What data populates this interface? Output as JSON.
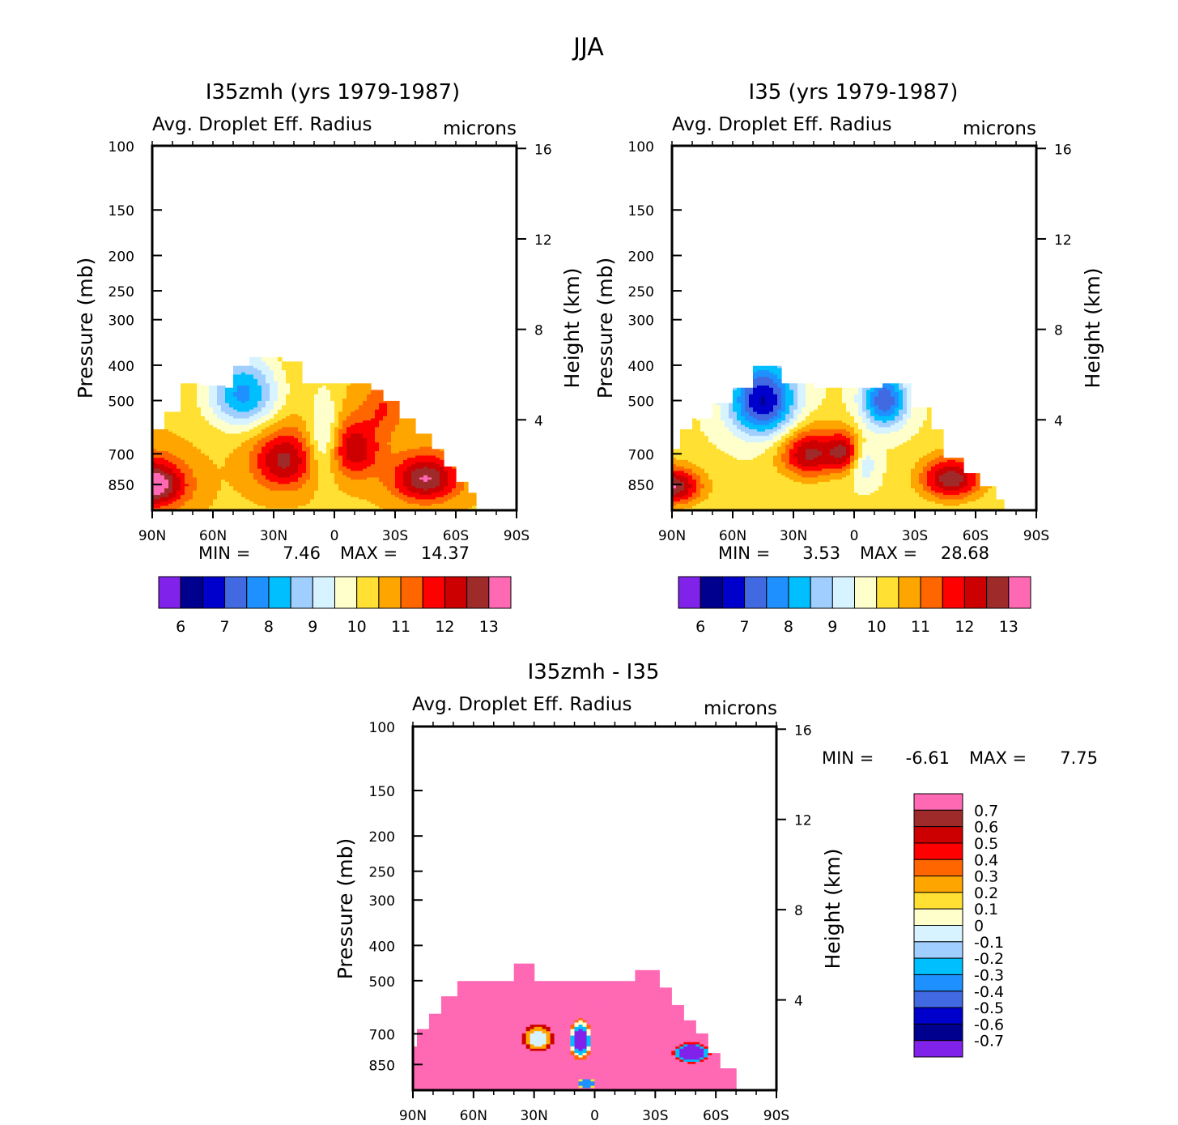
{
  "figure_title": "JJA",
  "palettes": {
    "abs": [
      "#8122EA",
      "#00008E",
      "#0000CC",
      "#4169E1",
      "#1E90FF",
      "#00BFFF",
      "#A0CFFF",
      "#D6F3FF",
      "#FFFFCC",
      "#FFE033",
      "#FFA500",
      "#FF6600",
      "#FF0000",
      "#CC0000",
      "#9E2A2A",
      "#FF69B4"
    ],
    "diff": [
      "#8122EA",
      "#00008E",
      "#0000CC",
      "#4169E1",
      "#1E90FF",
      "#00BFFF",
      "#A0CFFF",
      "#D6F3FF",
      "#FFFFCC",
      "#FFE033",
      "#FFA500",
      "#FF6600",
      "#FF0000",
      "#CC0000",
      "#9E2A2A",
      "#FF69B4"
    ]
  },
  "chart_data": [
    {
      "type": "heatmap",
      "title": "I35zmh (yrs 1979-1987)",
      "variable": "Avg. Droplet Eff. Radius",
      "units": "microns",
      "ylabel": "Pressure (mb)",
      "y2label": "Height (km)",
      "x_ticks": [
        "90N",
        "60N",
        "30N",
        "0",
        "30S",
        "60S",
        "90S"
      ],
      "y_ticks": [
        "100",
        "150",
        "200",
        "250",
        "300",
        "400",
        "500",
        "700",
        "850"
      ],
      "y2_ticks": [
        "16",
        "12",
        "8",
        "4"
      ],
      "min_label": "MIN =",
      "min_value": "7.46",
      "max_label": "MAX =",
      "max_value": "14.37",
      "colorbar_labels": [
        "6",
        "7",
        "8",
        "9",
        "10",
        "11",
        "12",
        "13"
      ]
    },
    {
      "type": "heatmap",
      "title": "I35 (yrs 1979-1987)",
      "variable": "Avg. Droplet Eff. Radius",
      "units": "microns",
      "ylabel": "Pressure (mb)",
      "y2label": "Height (km)",
      "x_ticks": [
        "90N",
        "60N",
        "30N",
        "0",
        "30S",
        "60S",
        "90S"
      ],
      "y_ticks": [
        "100",
        "150",
        "200",
        "250",
        "300",
        "400",
        "500",
        "700",
        "850"
      ],
      "y2_ticks": [
        "16",
        "12",
        "8",
        "4"
      ],
      "min_label": "MIN =",
      "min_value": "3.53",
      "max_label": "MAX =",
      "max_value": "28.68",
      "colorbar_labels": [
        "6",
        "7",
        "8",
        "9",
        "10",
        "11",
        "12",
        "13"
      ]
    },
    {
      "type": "heatmap",
      "title": "I35zmh - I35",
      "variable": "Avg. Droplet Eff. Radius",
      "units": "microns",
      "ylabel": "Pressure (mb)",
      "y2label": "Height (km)",
      "x_ticks": [
        "90N",
        "60N",
        "30N",
        "0",
        "30S",
        "60S",
        "90S"
      ],
      "y_ticks": [
        "100",
        "150",
        "200",
        "250",
        "300",
        "400",
        "500",
        "700",
        "850"
      ],
      "y2_ticks": [
        "16",
        "12",
        "8",
        "4"
      ],
      "min_label": "MIN =",
      "min_value": "-6.61",
      "max_label": "MAX =",
      "max_value": "7.75",
      "colorbar_labels": [
        "0.7",
        "0.6",
        "0.5",
        "0.4",
        "0.3",
        "0.2",
        "0.1",
        "0",
        "-0.1",
        "-0.2",
        "-0.3",
        "-0.4",
        "-0.5",
        "-0.6",
        "-0.7"
      ]
    }
  ]
}
